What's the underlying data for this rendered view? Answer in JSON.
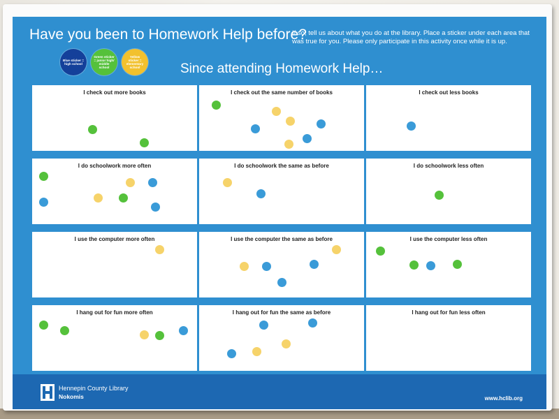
{
  "title": "Have you been to Homework Help before?",
  "instructions": "If so, tell us about what you do at the library. Place a sticker under each area that was true for you. Please only participate in this activity once while it is up.",
  "subtitle": "Since attending Homework Help…",
  "key": [
    {
      "label": "Blue sticker = high school",
      "color": "#14409a"
    },
    {
      "label": "Green sticker = junior high/ middle school",
      "color": "#55c13b"
    },
    {
      "label": "Yellow sticker = elementary school",
      "color": "#f2c12e"
    }
  ],
  "rows": [
    {
      "cells": [
        {
          "label": "I check out more books"
        },
        {
          "label": "I check out the same number of books"
        },
        {
          "label": "I check out less books"
        }
      ]
    },
    {
      "cells": [
        {
          "label": "I do schoolwork more often"
        },
        {
          "label": "I do schoolwork the same as before"
        },
        {
          "label": "I do schoolwork less often"
        }
      ]
    },
    {
      "cells": [
        {
          "label": "I use the computer more often"
        },
        {
          "label": "I use the computer the same as before"
        },
        {
          "label": "I use the computer less often"
        }
      ]
    },
    {
      "cells": [
        {
          "label": "I hang out for fun more often"
        },
        {
          "label": "I hang out for fun the same as before"
        },
        {
          "label": "I hang out for fun less often"
        }
      ]
    }
  ],
  "footer": {
    "library_name": "Hennepin County Library",
    "branch": "Nokomis",
    "url": "www.hclib.org"
  },
  "colors": {
    "poster_blue": "#2f8fd0",
    "footer_blue": "#1d68b2",
    "sticker_green": "#55c13b",
    "sticker_blue": "#3a9bd8",
    "sticker_yellow": "#f6d36a"
  }
}
